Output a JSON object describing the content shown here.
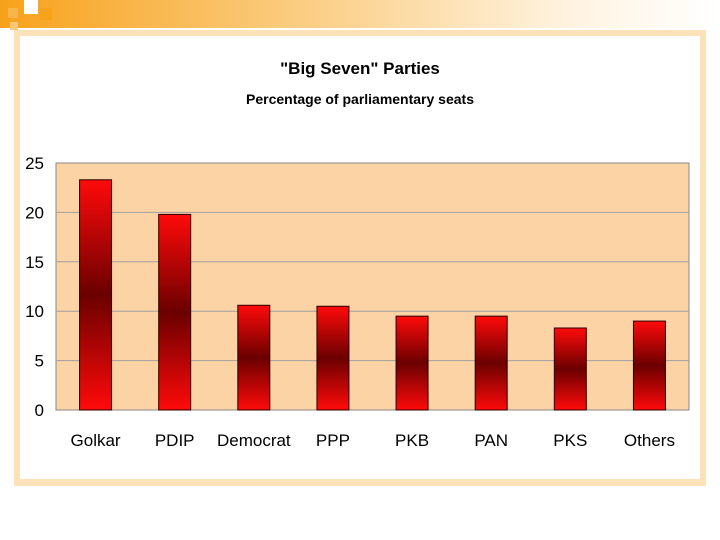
{
  "chart_data": {
    "type": "bar",
    "title": "\"Big Seven\" Parties",
    "subtitle": "Percentage of parliamentary seats",
    "categories": [
      "Golkar",
      "PDIP",
      "Democrat",
      "PPP",
      "PKB",
      "PAN",
      "PKS",
      "Others"
    ],
    "values": [
      23.3,
      19.8,
      10.6,
      10.5,
      9.5,
      9.5,
      8.3,
      9.0
    ],
    "xlabel": "",
    "ylabel": "",
    "ylim": [
      0,
      25
    ],
    "yticks": [
      0,
      5,
      10,
      15,
      20,
      25
    ],
    "grid": true,
    "legend": "none",
    "colors": {
      "plot_background": "#fbd3a4",
      "bar_edge": "#ff0000",
      "bar_center": "#6b0000",
      "gridline": "#a0a0a0"
    }
  },
  "decor": {
    "accent": "#f7a21b",
    "frame": "#fde1b8"
  }
}
